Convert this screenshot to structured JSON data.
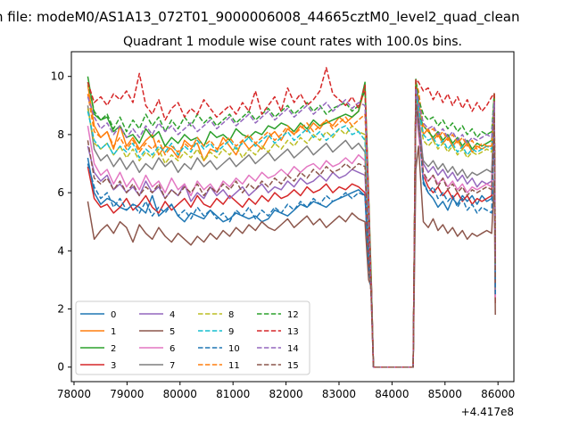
{
  "suptitle": "n file: modeM0/AS1A13_072T01_9000006008_44665cztM0_level2_quad_clean",
  "chart_data": {
    "type": "line",
    "title": "Quadrant 1 module wise count rates with 100.0s bins.",
    "xlabel": "",
    "ylabel": "",
    "x_offset_label": "+4.417e8",
    "xlim": [
      77950,
      86300
    ],
    "ylim": [
      -0.5,
      10.85
    ],
    "xticks": [
      78000,
      79000,
      80000,
      81000,
      82000,
      83000,
      84000,
      85000,
      86000
    ],
    "yticks": [
      0,
      2,
      4,
      6,
      8,
      10
    ],
    "grid": false,
    "legend": {
      "placement": "lower-left",
      "columns": 4
    },
    "gap": {
      "drop_start": 83500,
      "zero_start": 83650,
      "zero_end": 84400,
      "rise_end": 84450,
      "end": 85950
    },
    "series": [
      {
        "name": "0",
        "color": "#1f77b4",
        "dash": "solid",
        "seg1": [
          7.2,
          6.0,
          5.6,
          5.8,
          5.7,
          5.5,
          5.4,
          5.6,
          5.5,
          5.3,
          5.9,
          5.2,
          5.4,
          5.6,
          5.2,
          5.0,
          5.3,
          5.2,
          5.1,
          5.4,
          5.2,
          5.0,
          5.1,
          5.3,
          5.2,
          5.1,
          5.2,
          5.0,
          5.1,
          5.4,
          5.3,
          5.2,
          5.4,
          5.6,
          5.5,
          5.7,
          5.6,
          5.5,
          5.7,
          5.8,
          5.9,
          6.0,
          6.1,
          5.9
        ],
        "seg2": [
          8.4,
          6.4,
          6.0,
          5.8,
          5.5,
          5.7,
          5.4,
          5.8,
          5.6,
          5.9,
          5.7,
          5.9,
          5.6,
          5.9,
          5.7,
          5.8
        ],
        "ends": [
          8.8,
          2.6
        ]
      },
      {
        "name": "1",
        "color": "#ff7f0e",
        "dash": "solid",
        "seg1": [
          9.7,
          8.3,
          7.9,
          8.1,
          7.5,
          8.3,
          7.6,
          7.9,
          7.5,
          7.8,
          8.0,
          7.3,
          7.6,
          7.5,
          7.2,
          7.8,
          7.6,
          7.7,
          7.1,
          7.5,
          7.4,
          7.9,
          7.6,
          7.3,
          7.8,
          7.5,
          7.7,
          7.5,
          7.9,
          8.1,
          7.8,
          8.2,
          8.0,
          8.3,
          8.1,
          8.4,
          8.2,
          8.5,
          8.3,
          8.6,
          8.4,
          8.6,
          8.8,
          9.6
        ],
        "seg2": [
          9.2,
          8.0,
          8.2,
          7.8,
          8.0,
          7.7,
          7.9,
          7.6,
          7.8,
          7.5,
          7.7,
          7.4,
          7.6,
          7.5,
          7.6,
          7.6
        ],
        "ends": [
          9.8,
          2.8
        ]
      },
      {
        "name": "2",
        "color": "#2ca02c",
        "dash": "solid",
        "seg1": [
          10.0,
          8.7,
          8.5,
          8.6,
          8.1,
          8.3,
          7.9,
          8.0,
          7.7,
          8.2,
          7.9,
          8.1,
          7.6,
          7.9,
          7.7,
          8.0,
          7.8,
          7.9,
          7.6,
          8.1,
          7.9,
          8.0,
          7.8,
          8.2,
          8.0,
          7.9,
          8.1,
          8.0,
          8.3,
          8.2,
          8.4,
          8.3,
          8.1,
          8.4,
          8.2,
          8.5,
          8.3,
          8.4,
          8.5,
          8.6,
          8.7,
          8.6,
          8.8,
          9.8
        ],
        "seg2": [
          8.7,
          8.3,
          8.1,
          7.9,
          8.1,
          7.8,
          8.0,
          7.7,
          7.9,
          7.6,
          7.8,
          7.5,
          7.7,
          7.6,
          7.7,
          7.8
        ],
        "ends": [
          9.9,
          3.2
        ]
      },
      {
        "name": "3",
        "color": "#d62728",
        "dash": "solid",
        "seg1": [
          6.9,
          5.8,
          5.5,
          5.6,
          5.3,
          5.5,
          5.8,
          5.4,
          5.6,
          5.9,
          5.5,
          5.3,
          5.7,
          5.4,
          5.6,
          5.8,
          5.5,
          5.9,
          5.6,
          5.5,
          5.8,
          5.6,
          5.9,
          5.7,
          5.5,
          5.8,
          5.6,
          5.9,
          5.7,
          6.0,
          5.8,
          5.9,
          6.1,
          5.9,
          6.2,
          6.0,
          6.1,
          6.3,
          6.0,
          6.2,
          6.1,
          6.3,
          6.2,
          6.0
        ],
        "seg2": [
          8.6,
          6.6,
          6.2,
          6.0,
          6.2,
          5.9,
          6.1,
          5.8,
          6.0,
          5.7,
          5.9,
          5.6,
          5.8,
          5.7,
          5.8,
          5.9
        ],
        "ends": [
          9.6,
          2.2
        ]
      },
      {
        "name": "4",
        "color": "#9467bd",
        "dash": "solid",
        "seg1": [
          7.6,
          6.7,
          6.4,
          6.6,
          6.1,
          6.3,
          6.0,
          6.2,
          5.9,
          6.4,
          6.0,
          6.2,
          5.8,
          6.1,
          5.9,
          6.3,
          5.7,
          6.0,
          5.8,
          6.2,
          5.9,
          6.1,
          5.8,
          6.0,
          6.2,
          5.9,
          6.1,
          6.3,
          6.0,
          6.2,
          6.1,
          6.4,
          6.2,
          6.5,
          6.3,
          6.4,
          6.6,
          6.4,
          6.7,
          6.5,
          6.6,
          6.8,
          6.7,
          6.6
        ],
        "seg2": [
          8.8,
          7.0,
          6.7,
          6.9,
          6.6,
          6.8,
          6.5,
          6.7,
          6.4,
          6.6,
          6.3,
          6.5,
          6.2,
          6.4,
          6.3,
          6.4
        ],
        "ends": [
          9.5,
          3.0
        ]
      },
      {
        "name": "5",
        "color": "#8c564b",
        "dash": "solid",
        "seg1": [
          5.7,
          4.4,
          4.7,
          4.9,
          4.6,
          5.0,
          4.8,
          4.3,
          4.9,
          4.6,
          4.4,
          4.8,
          4.5,
          4.3,
          4.6,
          4.4,
          4.2,
          4.5,
          4.3,
          4.6,
          4.4,
          4.7,
          4.5,
          4.8,
          4.6,
          4.9,
          4.7,
          5.0,
          4.8,
          4.7,
          4.9,
          5.1,
          4.8,
          5.0,
          5.2,
          4.9,
          5.1,
          4.8,
          5.0,
          5.2,
          5.0,
          5.3,
          5.1,
          5.0
        ],
        "seg2": [
          7.6,
          5.0,
          4.8,
          5.1,
          4.7,
          4.9,
          4.6,
          4.8,
          4.5,
          4.7,
          4.4,
          4.6,
          4.5,
          4.6,
          4.7,
          4.6
        ],
        "ends": [
          6.8,
          1.8
        ]
      },
      {
        "name": "6",
        "color": "#e377c2",
        "dash": "solid",
        "seg1": [
          8.3,
          7.0,
          6.6,
          6.8,
          6.3,
          6.7,
          6.2,
          6.5,
          6.1,
          6.6,
          6.2,
          6.4,
          6.0,
          6.5,
          6.1,
          6.3,
          5.9,
          6.4,
          6.1,
          6.3,
          6.0,
          6.4,
          6.2,
          6.5,
          6.3,
          6.6,
          6.4,
          6.7,
          6.5,
          6.6,
          6.8,
          6.6,
          6.9,
          6.7,
          6.9,
          7.0,
          6.8,
          7.1,
          6.9,
          7.0,
          7.2,
          7.0,
          7.3,
          7.1
        ],
        "seg2": [
          8.0,
          6.6,
          6.4,
          6.6,
          6.3,
          6.5,
          6.2,
          6.4,
          6.1,
          6.3,
          6.0,
          6.2,
          6.1,
          6.2,
          6.3,
          6.2
        ],
        "ends": [
          8.9,
          2.4
        ]
      },
      {
        "name": "7",
        "color": "#7f7f7f",
        "dash": "solid",
        "seg1": [
          9.0,
          7.5,
          7.1,
          7.3,
          6.9,
          7.2,
          6.8,
          7.1,
          6.7,
          7.0,
          6.8,
          7.2,
          6.9,
          7.1,
          6.7,
          7.0,
          6.8,
          7.2,
          6.9,
          7.1,
          6.8,
          7.0,
          7.2,
          6.9,
          7.1,
          7.3,
          7.0,
          7.2,
          7.4,
          7.1,
          7.3,
          7.5,
          7.2,
          7.4,
          7.6,
          7.3,
          7.5,
          7.7,
          7.4,
          7.6,
          7.8,
          7.5,
          7.7,
          7.4
        ],
        "seg2": [
          8.2,
          7.1,
          6.9,
          7.1,
          6.8,
          7.0,
          6.7,
          6.9,
          6.6,
          6.8,
          6.5,
          6.7,
          6.6,
          6.7,
          6.8,
          6.7
        ],
        "ends": [
          9.3,
          2.7
        ]
      },
      {
        "name": "8",
        "color": "#bcbd22",
        "dash": "dashed",
        "seg1": [
          8.9,
          7.7,
          7.5,
          7.7,
          7.3,
          7.6,
          7.2,
          7.5,
          7.1,
          7.4,
          7.2,
          7.5,
          7.0,
          7.3,
          7.1,
          7.4,
          7.2,
          7.5,
          7.1,
          7.4,
          7.2,
          7.5,
          7.3,
          7.6,
          7.2,
          7.5,
          7.3,
          7.6,
          7.4,
          7.7,
          7.5,
          7.8,
          7.6,
          7.9,
          7.7,
          8.0,
          7.8,
          8.1,
          7.9,
          8.2,
          8.0,
          8.3,
          8.1,
          8.0
        ],
        "seg2": [
          8.9,
          7.8,
          7.6,
          7.8,
          7.5,
          7.7,
          7.4,
          7.6,
          7.3,
          7.5,
          7.2,
          7.4,
          7.3,
          7.4,
          7.5,
          7.4
        ],
        "ends": [
          9.4,
          3.0
        ]
      },
      {
        "name": "9",
        "color": "#17becf",
        "dash": "dashed",
        "seg1": [
          8.8,
          7.8,
          7.5,
          7.7,
          7.3,
          7.6,
          7.4,
          7.7,
          7.2,
          7.5,
          7.3,
          7.6,
          7.4,
          7.7,
          7.3,
          7.6,
          7.4,
          7.8,
          7.5,
          7.7,
          7.4,
          7.6,
          7.8,
          7.5,
          7.7,
          7.9,
          7.6,
          7.8,
          8.0,
          7.7,
          7.9,
          8.1,
          7.8,
          8.0,
          8.2,
          7.9,
          8.1,
          7.8,
          8.0,
          8.2,
          8.3,
          8.0,
          8.1,
          7.8
        ],
        "seg2": [
          8.9,
          8.0,
          7.8,
          7.9,
          7.6,
          7.8,
          7.5,
          7.7,
          7.4,
          7.6,
          7.3,
          7.5,
          7.4,
          7.5,
          7.6,
          7.5
        ],
        "ends": [
          9.5,
          3.1
        ]
      },
      {
        "name": "10",
        "color": "#1f77b4",
        "dash": "dashed",
        "seg1": [
          7.0,
          6.2,
          5.8,
          6.0,
          5.5,
          5.8,
          5.4,
          5.6,
          5.3,
          5.7,
          5.2,
          5.5,
          5.3,
          5.6,
          5.2,
          5.4,
          5.1,
          5.5,
          5.2,
          5.4,
          5.1,
          5.3,
          5.0,
          5.4,
          5.2,
          5.5,
          5.1,
          5.4,
          5.2,
          5.5,
          5.3,
          5.6,
          5.4,
          5.7,
          5.5,
          5.8,
          5.6,
          5.9,
          5.7,
          5.8,
          6.0,
          5.8,
          6.0,
          5.9
        ],
        "seg2": [
          8.5,
          6.3,
          6.0,
          6.2,
          5.8,
          6.0,
          5.7,
          5.9,
          5.5,
          5.8,
          5.4,
          5.6,
          5.3,
          5.5,
          5.4,
          5.3
        ],
        "ends": [
          9.0,
          2.5
        ]
      },
      {
        "name": "11",
        "color": "#ff7f0e",
        "dash": "dashed",
        "seg1": [
          9.4,
          8.1,
          7.9,
          8.1,
          7.6,
          7.9,
          7.5,
          7.8,
          7.4,
          7.7,
          7.5,
          7.8,
          7.3,
          7.6,
          7.4,
          7.7,
          7.5,
          7.9,
          7.6,
          7.8,
          7.5,
          7.7,
          7.9,
          7.6,
          7.8,
          8.0,
          7.7,
          7.9,
          8.1,
          7.8,
          8.0,
          8.3,
          8.0,
          8.2,
          8.4,
          8.1,
          8.3,
          8.5,
          8.2,
          8.4,
          8.6,
          8.3,
          8.5,
          8.7
        ],
        "seg2": [
          9.5,
          8.3,
          8.1,
          8.2,
          7.9,
          8.1,
          7.8,
          8.0,
          7.7,
          7.9,
          7.6,
          7.8,
          7.5,
          7.7,
          7.6,
          7.6
        ],
        "ends": [
          9.8,
          3.4
        ]
      },
      {
        "name": "12",
        "color": "#2ca02c",
        "dash": "dashed",
        "seg1": [
          9.8,
          8.8,
          8.5,
          8.7,
          8.2,
          8.6,
          8.1,
          8.5,
          8.2,
          8.7,
          8.3,
          8.6,
          8.1,
          8.5,
          8.2,
          8.6,
          8.3,
          8.7,
          8.4,
          8.6,
          8.3,
          8.5,
          8.7,
          8.4,
          8.6,
          8.8,
          8.5,
          8.7,
          8.9,
          8.6,
          8.8,
          9.0,
          8.7,
          8.9,
          9.1,
          8.8,
          9.0,
          8.7,
          8.9,
          9.0,
          9.1,
          8.8,
          9.0,
          9.5
        ],
        "seg2": [
          9.2,
          8.7,
          8.5,
          8.6,
          8.3,
          8.5,
          8.2,
          8.4,
          8.1,
          8.3,
          8.0,
          8.2,
          7.9,
          8.1,
          8.0,
          8.1
        ],
        "ends": [
          9.9,
          3.5
        ]
      },
      {
        "name": "13",
        "color": "#d62728",
        "dash": "dashed",
        "seg1": [
          9.8,
          9.1,
          9.3,
          9.0,
          9.4,
          9.2,
          9.5,
          9.1,
          10.1,
          9.0,
          8.7,
          9.2,
          8.5,
          8.9,
          9.1,
          8.6,
          8.9,
          8.7,
          9.2,
          8.9,
          8.6,
          8.8,
          9.0,
          8.7,
          9.1,
          8.8,
          9.5,
          8.7,
          9.0,
          9.3,
          8.8,
          9.6,
          9.1,
          9.4,
          9.0,
          9.2,
          9.5,
          10.3,
          9.4,
          9.2,
          9.0,
          9.3,
          8.9,
          9.7
        ],
        "seg2": [
          9.8,
          9.5,
          9.6,
          9.2,
          9.5,
          9.1,
          9.4,
          9.0,
          9.3,
          8.9,
          9.2,
          8.8,
          9.1,
          8.8,
          9.0,
          9.3
        ],
        "ends": [
          9.9,
          3.7
        ]
      },
      {
        "name": "14",
        "color": "#9467bd",
        "dash": "dashed",
        "seg1": [
          9.3,
          8.6,
          8.2,
          8.4,
          8.0,
          8.3,
          7.9,
          8.2,
          7.9,
          8.3,
          8.0,
          8.4,
          8.1,
          8.3,
          8.0,
          8.2,
          8.4,
          8.1,
          8.3,
          8.5,
          8.2,
          8.4,
          8.6,
          8.3,
          8.5,
          8.7,
          8.4,
          8.6,
          8.8,
          8.5,
          8.7,
          8.9,
          8.6,
          8.8,
          9.0,
          8.7,
          8.9,
          9.1,
          8.8,
          9.0,
          9.2,
          8.9,
          9.1,
          9.0
        ],
        "seg2": [
          9.1,
          8.4,
          8.2,
          8.3,
          8.0,
          8.2,
          7.9,
          8.1,
          7.8,
          8.0,
          7.7,
          7.9,
          7.8,
          7.9,
          8.0,
          7.9
        ],
        "ends": [
          9.6,
          3.3
        ]
      },
      {
        "name": "15",
        "color": "#8c564b",
        "dash": "dashed",
        "seg1": [
          7.8,
          6.5,
          6.3,
          6.5,
          6.1,
          6.4,
          6.0,
          6.3,
          5.9,
          6.2,
          6.0,
          6.3,
          5.8,
          6.1,
          5.9,
          6.2,
          6.0,
          6.3,
          5.9,
          6.2,
          6.0,
          6.3,
          6.1,
          6.4,
          6.0,
          6.3,
          6.1,
          6.4,
          6.2,
          6.5,
          6.3,
          6.6,
          6.4,
          6.7,
          6.5,
          6.8,
          6.6,
          6.9,
          6.7,
          6.8,
          7.0,
          6.8,
          7.0,
          6.9
        ],
        "seg2": [
          8.4,
          6.7,
          6.4,
          6.6,
          6.2,
          6.5,
          6.1,
          6.3,
          6.0,
          6.2,
          5.9,
          6.1,
          6.0,
          6.1,
          6.2,
          6.1
        ],
        "ends": [
          9.2,
          2.9
        ]
      }
    ]
  }
}
